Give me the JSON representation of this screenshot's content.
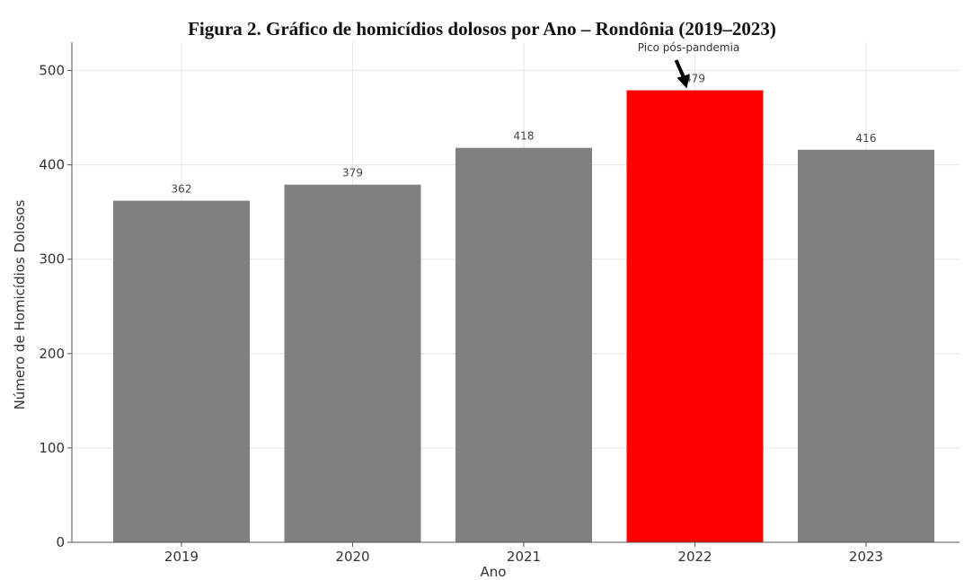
{
  "figure": {
    "title": "Figura 2. Gráfico de homicídios dolosos por Ano – Rondônia (2019–2023)"
  },
  "chart_data": {
    "type": "bar",
    "title": "Figura 2. Gráfico de homicídios dolosos por Ano – Rondônia (2019–2023)",
    "xlabel": "Ano",
    "ylabel": "Número de Homicídios Dolosos",
    "categories": [
      "2019",
      "2020",
      "2021",
      "2022",
      "2023"
    ],
    "values": [
      362,
      379,
      418,
      479,
      416
    ],
    "data_labels": [
      "362",
      "379",
      "418",
      "479",
      "416"
    ],
    "bar_colors": [
      "#808080",
      "#808080",
      "#808080",
      "#ff0000",
      "#808080"
    ],
    "ylim": [
      0,
      530
    ],
    "yticks": [
      0,
      100,
      200,
      300,
      400,
      500
    ],
    "grid": true,
    "annotation": {
      "text": "Pico pós-pandemia",
      "category": "2022"
    }
  }
}
